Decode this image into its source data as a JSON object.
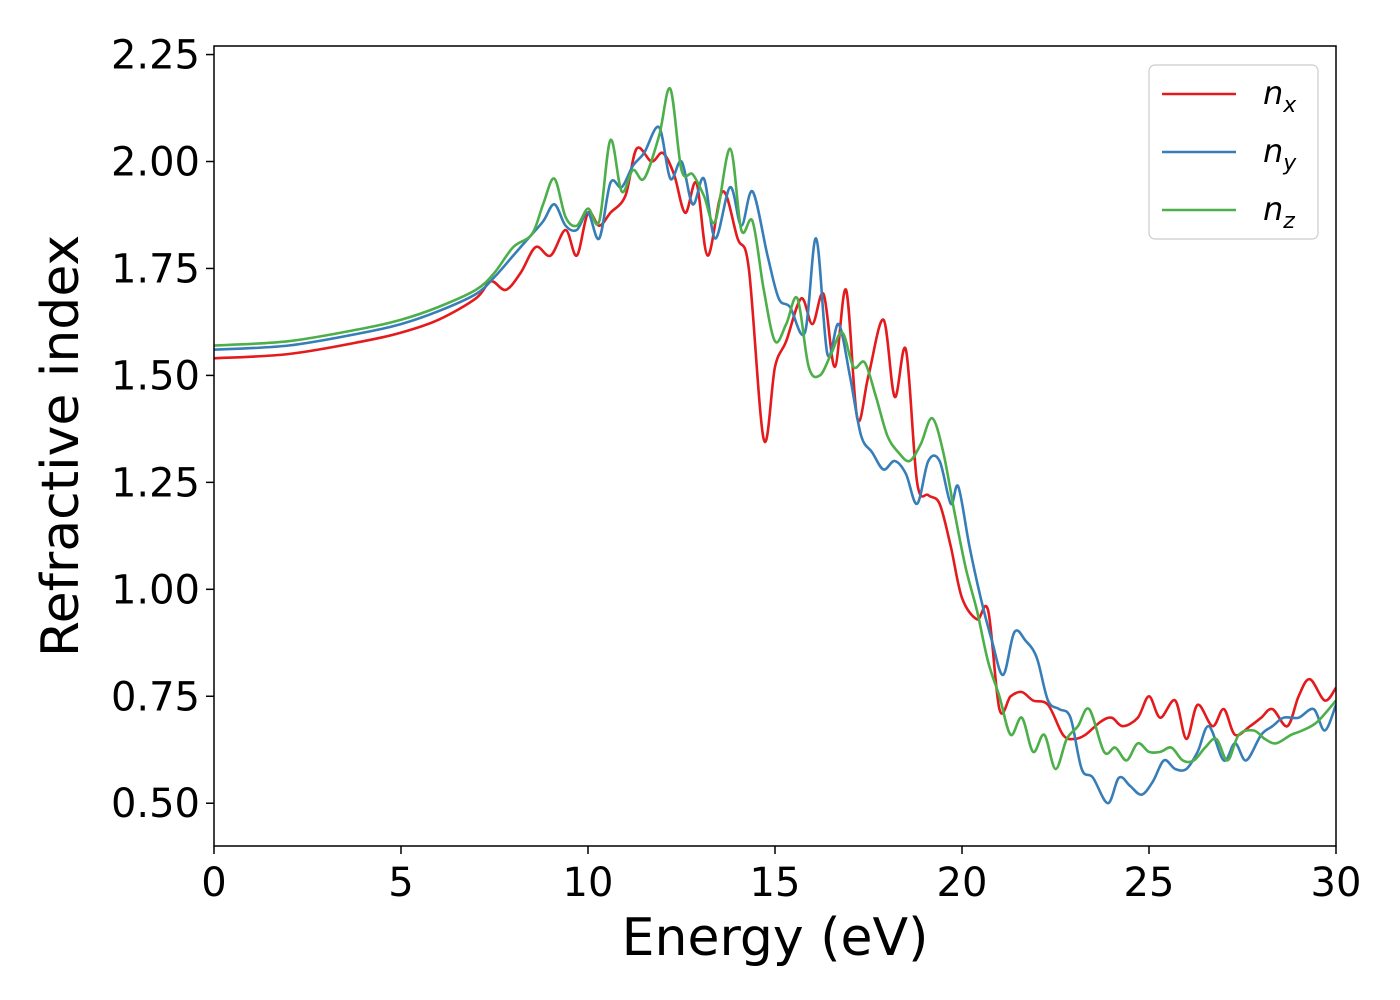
{
  "chart_data": {
    "type": "line",
    "title": "",
    "xlabel": "Energy (eV)",
    "ylabel": "Refractive index",
    "xlim": [
      0,
      30
    ],
    "ylim": [
      0.4,
      2.27
    ],
    "xticks": [
      0,
      5,
      10,
      15,
      20,
      25,
      30
    ],
    "xtick_labels": [
      "0",
      "5",
      "10",
      "15",
      "20",
      "25",
      "30"
    ],
    "yticks": [
      0.5,
      0.75,
      1.0,
      1.25,
      1.5,
      1.75,
      2.0,
      2.25
    ],
    "ytick_labels": [
      "0.50",
      "0.75",
      "1.00",
      "1.25",
      "1.50",
      "1.75",
      "2.00",
      "2.25"
    ],
    "grid": false,
    "legend_position": "top-right",
    "series": [
      {
        "name": "n",
        "subscript": "x",
        "color": "#e41a1c",
        "x": [
          0,
          2,
          4,
          5,
          6,
          7,
          7.4,
          7.8,
          8.2,
          8.6,
          9,
          9.4,
          9.7,
          10,
          10.3,
          10.6,
          11,
          11.3,
          11.7,
          12,
          12.3,
          12.6,
          12.9,
          13.2,
          13.6,
          14,
          14.3,
          14.7,
          15,
          15.3,
          15.7,
          16,
          16.3,
          16.6,
          16.9,
          17.2,
          17.5,
          17.9,
          18.2,
          18.5,
          18.8,
          19.1,
          19.4,
          19.7,
          20,
          20.4,
          20.7,
          21,
          21.3,
          21.6,
          21.9,
          22.3,
          22.7,
          23,
          23.3,
          23.7,
          24,
          24.3,
          24.7,
          25,
          25.3,
          25.7,
          26,
          26.3,
          26.7,
          27,
          27.3,
          27.7,
          28,
          28.3,
          28.7,
          29,
          29.3,
          29.7,
          30
        ],
        "y": [
          1.54,
          1.55,
          1.58,
          1.6,
          1.63,
          1.68,
          1.72,
          1.7,
          1.74,
          1.8,
          1.78,
          1.84,
          1.78,
          1.88,
          1.85,
          1.88,
          1.92,
          2.03,
          2.0,
          2.02,
          1.97,
          1.88,
          1.95,
          1.78,
          1.93,
          1.82,
          1.75,
          1.35,
          1.52,
          1.58,
          1.68,
          1.62,
          1.69,
          1.52,
          1.7,
          1.4,
          1.5,
          1.63,
          1.45,
          1.56,
          1.25,
          1.22,
          1.2,
          1.1,
          0.98,
          0.93,
          0.95,
          0.72,
          0.75,
          0.76,
          0.74,
          0.73,
          0.66,
          0.65,
          0.66,
          0.69,
          0.7,
          0.68,
          0.7,
          0.75,
          0.7,
          0.74,
          0.65,
          0.73,
          0.68,
          0.72,
          0.66,
          0.68,
          0.7,
          0.72,
          0.68,
          0.75,
          0.79,
          0.74,
          0.77
        ]
      },
      {
        "name": "n",
        "subscript": "y",
        "color": "#377eb8",
        "x": [
          0,
          2,
          4,
          5,
          6,
          7,
          7.5,
          8,
          8.4,
          8.8,
          9.1,
          9.4,
          9.7,
          10,
          10.3,
          10.6,
          10.9,
          11.2,
          11.5,
          11.9,
          12.2,
          12.5,
          12.8,
          13.1,
          13.4,
          13.8,
          14.1,
          14.4,
          14.8,
          15.1,
          15.4,
          15.8,
          16.1,
          16.4,
          16.7,
          17,
          17.3,
          17.6,
          17.9,
          18.2,
          18.5,
          18.8,
          19.1,
          19.4,
          19.7,
          19.9,
          20.2,
          20.5,
          20.8,
          21.1,
          21.4,
          21.7,
          22,
          22.3,
          22.6,
          22.9,
          23.2,
          23.5,
          23.9,
          24.2,
          24.5,
          24.8,
          25.1,
          25.4,
          25.7,
          26,
          26.3,
          26.6,
          27,
          27.3,
          27.6,
          28,
          28.3,
          28.6,
          29,
          29.4,
          29.7,
          30
        ],
        "y": [
          1.56,
          1.57,
          1.6,
          1.62,
          1.65,
          1.69,
          1.73,
          1.78,
          1.82,
          1.86,
          1.9,
          1.85,
          1.84,
          1.88,
          1.82,
          1.95,
          1.94,
          1.99,
          2.02,
          2.08,
          1.96,
          2.0,
          1.9,
          1.96,
          1.82,
          1.94,
          1.85,
          1.93,
          1.78,
          1.68,
          1.66,
          1.6,
          1.82,
          1.55,
          1.62,
          1.5,
          1.36,
          1.32,
          1.28,
          1.3,
          1.27,
          1.2,
          1.3,
          1.3,
          1.2,
          1.24,
          1.1,
          0.98,
          0.88,
          0.8,
          0.9,
          0.88,
          0.84,
          0.74,
          0.72,
          0.7,
          0.58,
          0.56,
          0.5,
          0.56,
          0.54,
          0.52,
          0.55,
          0.6,
          0.58,
          0.58,
          0.62,
          0.68,
          0.6,
          0.64,
          0.6,
          0.66,
          0.68,
          0.7,
          0.7,
          0.72,
          0.67,
          0.73
        ]
      },
      {
        "name": "n",
        "subscript": "z",
        "color": "#4daf4a",
        "x": [
          0,
          2,
          4,
          5,
          6,
          7,
          7.5,
          8,
          8.5,
          8.8,
          9.1,
          9.4,
          9.7,
          10,
          10.3,
          10.6,
          10.9,
          11.2,
          11.5,
          11.9,
          12.2,
          12.5,
          12.8,
          13.1,
          13.4,
          13.8,
          14.1,
          14.4,
          14.7,
          15,
          15.3,
          15.6,
          15.9,
          16.2,
          16.5,
          16.8,
          17.1,
          17.4,
          17.7,
          18,
          18.3,
          18.6,
          18.9,
          19.2,
          19.5,
          19.8,
          20.1,
          20.4,
          20.7,
          21,
          21.3,
          21.6,
          21.9,
          22.2,
          22.5,
          22.8,
          23.1,
          23.4,
          23.8,
          24.1,
          24.4,
          24.7,
          25,
          25.3,
          25.6,
          25.9,
          26.2,
          26.5,
          26.8,
          27.1,
          27.4,
          27.8,
          28.1,
          28.4,
          28.8,
          29.1,
          29.5,
          30
        ],
        "y": [
          1.57,
          1.58,
          1.61,
          1.63,
          1.66,
          1.7,
          1.74,
          1.8,
          1.83,
          1.9,
          1.96,
          1.87,
          1.85,
          1.89,
          1.86,
          2.05,
          1.93,
          1.98,
          1.96,
          2.06,
          2.17,
          1.98,
          1.97,
          1.92,
          1.86,
          2.03,
          1.84,
          1.86,
          1.7,
          1.58,
          1.62,
          1.68,
          1.52,
          1.5,
          1.55,
          1.6,
          1.52,
          1.53,
          1.45,
          1.36,
          1.32,
          1.3,
          1.34,
          1.4,
          1.32,
          1.18,
          1.05,
          0.95,
          0.83,
          0.75,
          0.66,
          0.7,
          0.62,
          0.66,
          0.58,
          0.65,
          0.68,
          0.72,
          0.62,
          0.63,
          0.6,
          0.64,
          0.62,
          0.62,
          0.63,
          0.6,
          0.6,
          0.63,
          0.65,
          0.6,
          0.66,
          0.67,
          0.65,
          0.64,
          0.66,
          0.67,
          0.69,
          0.74
        ]
      }
    ]
  }
}
